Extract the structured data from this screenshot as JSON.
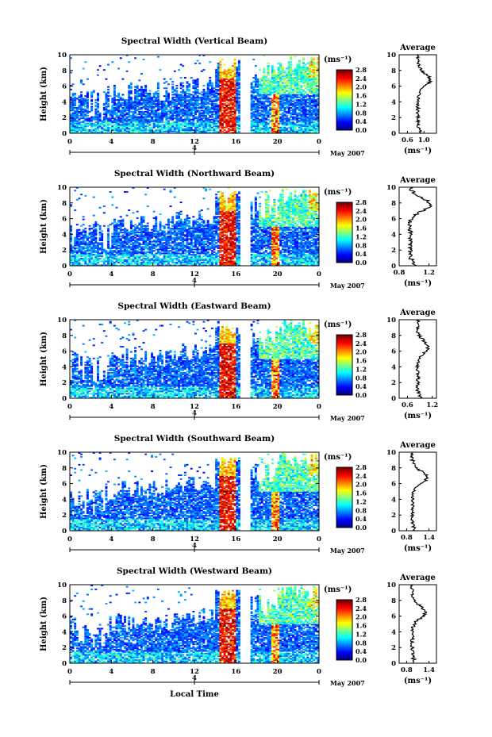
{
  "figure": {
    "xlabel": "Local Time"
  },
  "chart_data": [
    {
      "type": "heatmap",
      "title": "Spectral Width (Vertical Beam)",
      "ylabel": "Height (km)",
      "ylim": [
        0,
        10
      ],
      "yticks": [
        "0",
        "2",
        "4",
        "6",
        "8",
        "10"
      ],
      "xlim": [
        0,
        24
      ],
      "xticks": [
        "0",
        "4",
        "8",
        "12",
        "16",
        "20",
        "0"
      ],
      "date_label": "May 2007",
      "date_tick": "4",
      "colorbar": {
        "unit": "(ms⁻¹)",
        "ticks": [
          "0.0",
          "0.4",
          "0.8",
          "1.2",
          "1.6",
          "2.0",
          "2.4",
          "2.8"
        ]
      },
      "average": {
        "title": "Average",
        "xlabel": "(ms⁻¹)",
        "xticks": [
          "0.6",
          "1.0"
        ],
        "xlim": [
          0.4,
          1.3
        ],
        "ylim": [
          0,
          10
        ],
        "yticks": [
          "0",
          "2",
          "4",
          "6",
          "8",
          "10"
        ]
      }
    },
    {
      "type": "heatmap",
      "title": "Spectral Width (Northward Beam)",
      "ylabel": "Height (km)",
      "ylim": [
        0,
        10
      ],
      "yticks": [
        "0",
        "2",
        "4",
        "6",
        "8",
        "10"
      ],
      "xlim": [
        0,
        24
      ],
      "xticks": [
        "0",
        "4",
        "8",
        "12",
        "16",
        "20",
        "0"
      ],
      "date_label": "May 2007",
      "date_tick": "4",
      "colorbar": {
        "unit": "(ms⁻¹)",
        "ticks": [
          "0.0",
          "0.4",
          "0.8",
          "1.2",
          "1.6",
          "2.0",
          "2.4",
          "2.8"
        ]
      },
      "average": {
        "title": "Average",
        "xlabel": "(ms⁻¹)",
        "xticks": [
          "0.8",
          "1.2"
        ],
        "xlim": [
          0.8,
          1.3
        ],
        "ylim": [
          0,
          10
        ],
        "yticks": [
          "0",
          "2",
          "4",
          "6",
          "8",
          "10"
        ]
      }
    },
    {
      "type": "heatmap",
      "title": "Spectral Width (Eastward Beam)",
      "ylabel": "Height (km)",
      "ylim": [
        0,
        10
      ],
      "yticks": [
        "0",
        "2",
        "4",
        "6",
        "8",
        "10"
      ],
      "xlim": [
        0,
        24
      ],
      "xticks": [
        "0",
        "4",
        "8",
        "12",
        "16",
        "20",
        "0"
      ],
      "date_label": "May 2007",
      "date_tick": "4",
      "colorbar": {
        "unit": "(ms⁻¹)",
        "ticks": [
          "0.0",
          "0.4",
          "0.8",
          "1.2",
          "1.6",
          "2.0",
          "2.4",
          "2.8"
        ]
      },
      "average": {
        "title": "Average",
        "xlabel": "(ms⁻¹)",
        "xticks": [
          "0.6",
          "1.2"
        ],
        "xlim": [
          0.4,
          1.3
        ],
        "ylim": [
          0,
          10
        ],
        "yticks": [
          "0",
          "2",
          "4",
          "6",
          "8",
          "10"
        ]
      }
    },
    {
      "type": "heatmap",
      "title": "Spectral Width (Southward Beam)",
      "ylabel": "Height (km)",
      "ylim": [
        0,
        10
      ],
      "yticks": [
        "0",
        "2",
        "4",
        "6",
        "8",
        "10"
      ],
      "xlim": [
        0,
        24
      ],
      "xticks": [
        "0",
        "4",
        "8",
        "12",
        "16",
        "20",
        "0"
      ],
      "date_label": "May 2007",
      "date_tick": "4",
      "colorbar": {
        "unit": "(ms⁻¹)",
        "ticks": [
          "0.0",
          "0.4",
          "0.8",
          "1.2",
          "1.6",
          "2.0",
          "2.4",
          "2.8"
        ]
      },
      "average": {
        "title": "Average",
        "xlabel": "(ms⁻¹)",
        "xticks": [
          "0.8",
          "1.4"
        ],
        "xlim": [
          0.6,
          1.6
        ],
        "ylim": [
          0,
          10
        ],
        "yticks": [
          "0",
          "2",
          "4",
          "6",
          "8",
          "10"
        ]
      }
    },
    {
      "type": "heatmap",
      "title": "Spectral Width (Westward Beam)",
      "ylabel": "Height (km)",
      "ylim": [
        0,
        10
      ],
      "yticks": [
        "0",
        "2",
        "4",
        "6",
        "8",
        "10"
      ],
      "xlim": [
        0,
        24
      ],
      "xticks": [
        "0",
        "4",
        "8",
        "12",
        "16",
        "20",
        "0"
      ],
      "date_label": "May 2007",
      "date_tick": "4",
      "colorbar": {
        "unit": "(ms⁻¹)",
        "ticks": [
          "0.0",
          "0.4",
          "0.8",
          "1.2",
          "1.6",
          "2.0",
          "2.4",
          "2.8"
        ]
      },
      "average": {
        "title": "Average",
        "xlabel": "(ms⁻¹)",
        "xticks": [
          "0.8",
          "1.4"
        ],
        "xlim": [
          0.6,
          1.6
        ],
        "ylim": [
          0,
          10
        ],
        "yticks": [
          "0",
          "2",
          "4",
          "6",
          "8",
          "10"
        ]
      }
    }
  ]
}
